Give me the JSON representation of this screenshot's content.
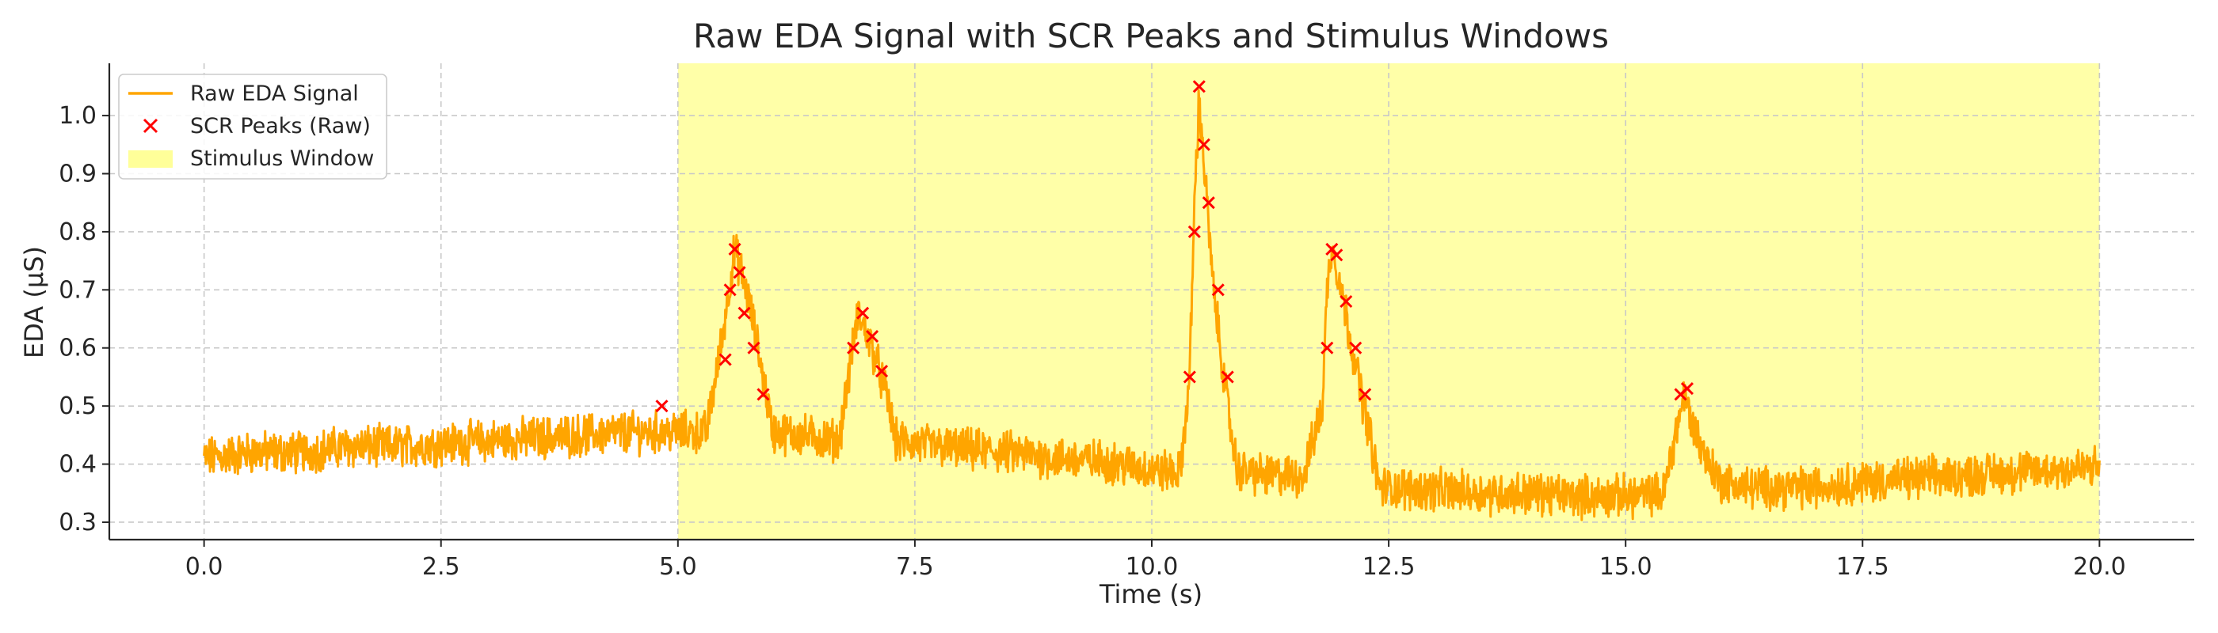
{
  "chart_data": {
    "type": "line",
    "title": "Raw EDA Signal with SCR Peaks and Stimulus Windows",
    "xlabel": "Time (s)",
    "ylabel": "EDA (µS)",
    "xlim": [
      -1.0,
      21.0
    ],
    "ylim": [
      0.27,
      1.09
    ],
    "xticks": [
      0.0,
      2.5,
      5.0,
      7.5,
      10.0,
      12.5,
      15.0,
      17.5,
      20.0
    ],
    "xtick_labels": [
      "0.0",
      "2.5",
      "5.0",
      "7.5",
      "10.0",
      "12.5",
      "15.0",
      "17.5",
      "20.0"
    ],
    "yticks": [
      0.3,
      0.4,
      0.5,
      0.6,
      0.7,
      0.8,
      0.9,
      1.0
    ],
    "ytick_labels": [
      "0.3",
      "0.4",
      "0.5",
      "0.6",
      "0.7",
      "0.8",
      "0.9",
      "1.0"
    ],
    "grid": true,
    "legend_position": "upper-left",
    "colors": {
      "signal": "#FFA500",
      "peaks": "#FF0000",
      "window": "#FFFF99"
    },
    "stimulus_window": [
      5.0,
      20.0
    ],
    "series": [
      {
        "name": "Raw EDA Signal",
        "kind": "line",
        "x": [
          0.0,
          0.5,
          1.0,
          1.5,
          2.0,
          2.5,
          3.0,
          3.5,
          4.0,
          4.5,
          5.0,
          5.3,
          5.45,
          5.6,
          5.75,
          5.9,
          6.0,
          6.3,
          6.7,
          6.8,
          6.9,
          7.05,
          7.2,
          7.3,
          7.5,
          8.0,
          8.5,
          9.0,
          9.5,
          10.0,
          10.3,
          10.4,
          10.45,
          10.5,
          10.55,
          10.65,
          10.8,
          10.9,
          11.2,
          11.6,
          11.8,
          11.85,
          11.9,
          12.0,
          12.15,
          12.3,
          12.4,
          13.0,
          13.5,
          14.0,
          14.5,
          15.0,
          15.4,
          15.55,
          15.62,
          15.7,
          15.85,
          16.0,
          16.3,
          17.0,
          17.5,
          18.0,
          18.5,
          19.0,
          19.5,
          20.0
        ],
        "y": [
          0.41,
          0.42,
          0.42,
          0.43,
          0.43,
          0.435,
          0.44,
          0.445,
          0.45,
          0.455,
          0.455,
          0.455,
          0.6,
          0.77,
          0.68,
          0.55,
          0.455,
          0.45,
          0.44,
          0.55,
          0.66,
          0.6,
          0.52,
          0.44,
          0.435,
          0.425,
          0.42,
          0.41,
          0.405,
          0.39,
          0.385,
          0.55,
          0.85,
          1.03,
          0.92,
          0.7,
          0.5,
          0.39,
          0.38,
          0.38,
          0.5,
          0.7,
          0.78,
          0.7,
          0.57,
          0.45,
          0.36,
          0.355,
          0.35,
          0.35,
          0.345,
          0.345,
          0.35,
          0.47,
          0.52,
          0.47,
          0.41,
          0.37,
          0.36,
          0.36,
          0.37,
          0.375,
          0.38,
          0.385,
          0.39,
          0.395
        ]
      },
      {
        "name": "SCR Peaks (Raw)",
        "kind": "scatter",
        "x": [
          4.83,
          5.5,
          5.55,
          5.6,
          5.65,
          5.7,
          5.8,
          5.9,
          6.85,
          6.95,
          7.05,
          7.15,
          10.4,
          10.45,
          10.5,
          10.55,
          10.6,
          10.7,
          10.8,
          11.85,
          11.9,
          11.95,
          12.05,
          12.15,
          12.25,
          15.58,
          15.65
        ],
        "y": [
          0.5,
          0.58,
          0.7,
          0.77,
          0.73,
          0.66,
          0.6,
          0.52,
          0.6,
          0.66,
          0.62,
          0.56,
          0.55,
          0.8,
          1.05,
          0.95,
          0.85,
          0.7,
          0.55,
          0.6,
          0.77,
          0.76,
          0.68,
          0.6,
          0.52,
          0.52,
          0.53
        ]
      },
      {
        "name": "Stimulus Window",
        "kind": "span"
      }
    ]
  }
}
